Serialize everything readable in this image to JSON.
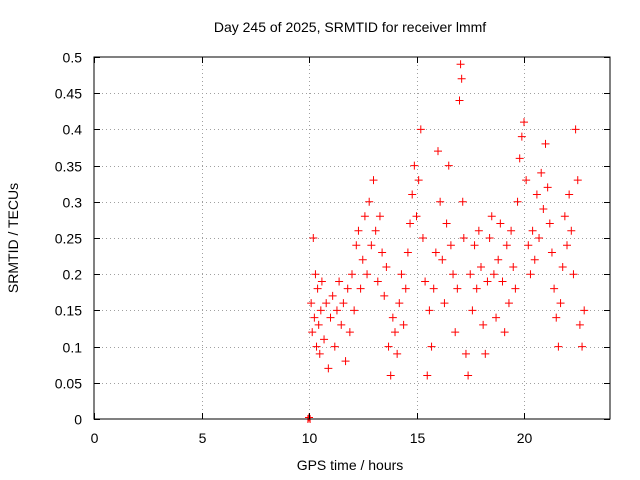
{
  "chart_data": {
    "type": "scatter",
    "title": "Day 245 of 2025, SRMTID for receiver lmmf",
    "xlabel": "GPS time / hours",
    "ylabel": "SRMTID / TECUs",
    "xlim": [
      0,
      24
    ],
    "ylim": [
      0,
      0.5
    ],
    "xticks": [
      0,
      5,
      10,
      15,
      20
    ],
    "xtick_labels": [
      "0",
      "5",
      "10",
      "15",
      "20"
    ],
    "yticks": [
      0,
      0.05,
      0.1,
      0.15,
      0.2,
      0.25,
      0.3,
      0.35,
      0.4,
      0.45,
      0.5
    ],
    "ytick_labels": [
      "0",
      "0.05",
      "0.1",
      "0.15",
      "0.2",
      "0.25",
      "0.3",
      "0.35",
      "0.4",
      "0.45",
      "0.5"
    ],
    "grid": true,
    "marker": "plus",
    "marker_color": "#ff0000",
    "series": [
      {
        "name": "SRMTID",
        "points": [
          [
            9.95,
            0.0
          ],
          [
            10.0,
            0.002
          ],
          [
            10.05,
            0.0
          ],
          [
            10.1,
            0.16
          ],
          [
            10.15,
            0.12
          ],
          [
            10.2,
            0.25
          ],
          [
            10.25,
            0.14
          ],
          [
            10.3,
            0.2
          ],
          [
            10.35,
            0.1
          ],
          [
            10.4,
            0.18
          ],
          [
            10.45,
            0.13
          ],
          [
            10.5,
            0.09
          ],
          [
            10.55,
            0.15
          ],
          [
            10.6,
            0.19
          ],
          [
            10.7,
            0.11
          ],
          [
            10.8,
            0.16
          ],
          [
            10.9,
            0.07
          ],
          [
            11.0,
            0.14
          ],
          [
            11.1,
            0.17
          ],
          [
            11.2,
            0.1
          ],
          [
            11.3,
            0.15
          ],
          [
            11.4,
            0.19
          ],
          [
            11.5,
            0.13
          ],
          [
            11.6,
            0.16
          ],
          [
            11.7,
            0.08
          ],
          [
            11.8,
            0.18
          ],
          [
            11.9,
            0.12
          ],
          [
            12.0,
            0.2
          ],
          [
            12.1,
            0.15
          ],
          [
            12.2,
            0.24
          ],
          [
            12.3,
            0.26
          ],
          [
            12.4,
            0.18
          ],
          [
            12.5,
            0.22
          ],
          [
            12.6,
            0.28
          ],
          [
            12.7,
            0.2
          ],
          [
            12.8,
            0.3
          ],
          [
            12.9,
            0.24
          ],
          [
            13.0,
            0.33
          ],
          [
            13.1,
            0.26
          ],
          [
            13.2,
            0.19
          ],
          [
            13.3,
            0.28
          ],
          [
            13.4,
            0.23
          ],
          [
            13.5,
            0.17
          ],
          [
            13.6,
            0.21
          ],
          [
            13.7,
            0.1
          ],
          [
            13.8,
            0.06
          ],
          [
            13.9,
            0.14
          ],
          [
            14.0,
            0.12
          ],
          [
            14.1,
            0.09
          ],
          [
            14.2,
            0.16
          ],
          [
            14.3,
            0.2
          ],
          [
            14.4,
            0.13
          ],
          [
            14.5,
            0.18
          ],
          [
            14.6,
            0.23
          ],
          [
            14.7,
            0.27
          ],
          [
            14.8,
            0.31
          ],
          [
            14.9,
            0.35
          ],
          [
            15.0,
            0.28
          ],
          [
            15.1,
            0.33
          ],
          [
            15.2,
            0.4
          ],
          [
            15.3,
            0.25
          ],
          [
            15.4,
            0.19
          ],
          [
            15.5,
            0.06
          ],
          [
            15.6,
            0.15
          ],
          [
            15.7,
            0.1
          ],
          [
            15.8,
            0.18
          ],
          [
            15.9,
            0.23
          ],
          [
            16.0,
            0.37
          ],
          [
            16.1,
            0.3
          ],
          [
            16.2,
            0.22
          ],
          [
            16.3,
            0.16
          ],
          [
            16.4,
            0.27
          ],
          [
            16.5,
            0.35
          ],
          [
            16.6,
            0.24
          ],
          [
            16.7,
            0.2
          ],
          [
            16.8,
            0.12
          ],
          [
            16.9,
            0.18
          ],
          [
            17.0,
            0.44
          ],
          [
            17.05,
            0.49
          ],
          [
            17.1,
            0.47
          ],
          [
            17.15,
            0.3
          ],
          [
            17.2,
            0.25
          ],
          [
            17.3,
            0.09
          ],
          [
            17.4,
            0.06
          ],
          [
            17.5,
            0.2
          ],
          [
            17.6,
            0.15
          ],
          [
            17.7,
            0.24
          ],
          [
            17.8,
            0.18
          ],
          [
            17.9,
            0.26
          ],
          [
            18.0,
            0.21
          ],
          [
            18.1,
            0.13
          ],
          [
            18.2,
            0.09
          ],
          [
            18.3,
            0.19
          ],
          [
            18.4,
            0.25
          ],
          [
            18.5,
            0.28
          ],
          [
            18.6,
            0.2
          ],
          [
            18.7,
            0.14
          ],
          [
            18.8,
            0.22
          ],
          [
            18.9,
            0.27
          ],
          [
            19.0,
            0.19
          ],
          [
            19.1,
            0.12
          ],
          [
            19.2,
            0.24
          ],
          [
            19.3,
            0.16
          ],
          [
            19.4,
            0.26
          ],
          [
            19.5,
            0.21
          ],
          [
            19.6,
            0.18
          ],
          [
            19.7,
            0.3
          ],
          [
            19.8,
            0.36
          ],
          [
            19.9,
            0.39
          ],
          [
            20.0,
            0.41
          ],
          [
            20.1,
            0.33
          ],
          [
            20.2,
            0.24
          ],
          [
            20.3,
            0.2
          ],
          [
            20.4,
            0.26
          ],
          [
            20.5,
            0.22
          ],
          [
            20.6,
            0.31
          ],
          [
            20.7,
            0.25
          ],
          [
            20.8,
            0.34
          ],
          [
            20.9,
            0.29
          ],
          [
            21.0,
            0.38
          ],
          [
            21.1,
            0.32
          ],
          [
            21.2,
            0.27
          ],
          [
            21.3,
            0.23
          ],
          [
            21.4,
            0.18
          ],
          [
            21.5,
            0.14
          ],
          [
            21.6,
            0.1
          ],
          [
            21.7,
            0.16
          ],
          [
            21.8,
            0.21
          ],
          [
            21.9,
            0.28
          ],
          [
            22.0,
            0.24
          ],
          [
            22.1,
            0.31
          ],
          [
            22.2,
            0.26
          ],
          [
            22.3,
            0.2
          ],
          [
            22.4,
            0.4
          ],
          [
            22.5,
            0.33
          ],
          [
            22.6,
            0.13
          ],
          [
            22.7,
            0.1
          ],
          [
            22.8,
            0.15
          ]
        ]
      }
    ]
  }
}
